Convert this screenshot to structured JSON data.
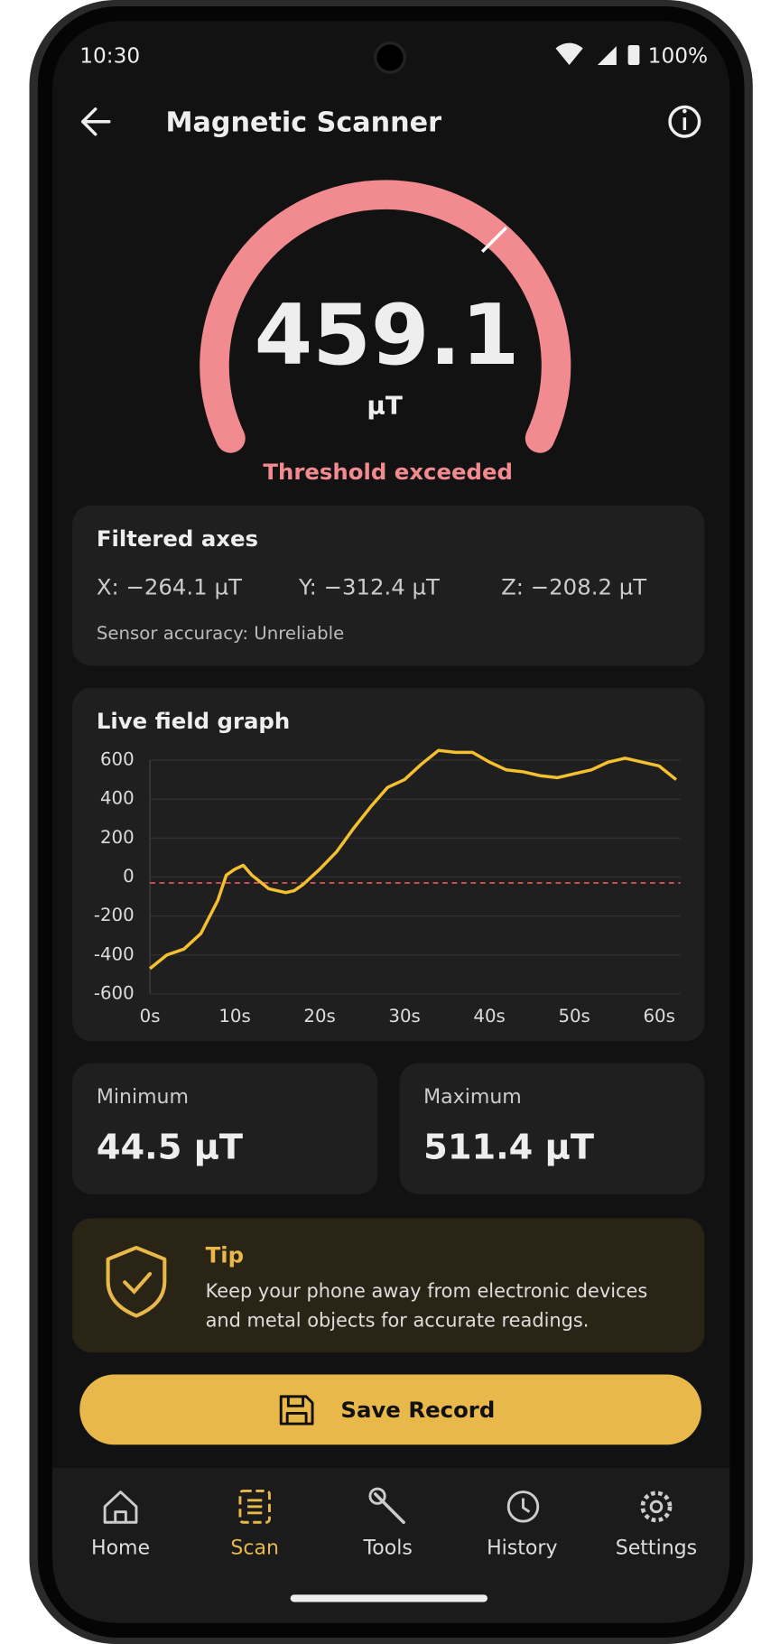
{
  "status_bar": {
    "time": "10:30",
    "battery": "100%"
  },
  "header": {
    "title": "Magnetic Scanner"
  },
  "gauge": {
    "value": "459.1",
    "unit": "µT",
    "status": "Threshold exceeded"
  },
  "axes_card": {
    "title": "Filtered axes",
    "x": "X: −264.1 µT",
    "y": "Y: −312.4 µT",
    "z": "Z: −208.2 µT",
    "accuracy": "Sensor accuracy: Unreliable"
  },
  "chart_data": {
    "type": "line",
    "title": "Live field graph",
    "x": [
      0,
      2,
      4,
      6,
      8,
      9,
      10,
      11,
      12,
      14,
      16,
      17,
      18,
      20,
      22,
      24,
      26,
      28,
      30,
      32,
      34,
      36,
      38,
      40,
      42,
      44,
      46,
      48,
      50,
      52,
      54,
      56,
      58,
      60,
      62
    ],
    "values": [
      -470,
      -400,
      -370,
      -290,
      -120,
      10,
      40,
      60,
      10,
      -60,
      -80,
      -70,
      -40,
      40,
      130,
      250,
      360,
      460,
      500,
      580,
      650,
      640,
      640,
      590,
      550,
      540,
      520,
      510,
      530,
      550,
      590,
      610,
      590,
      570,
      500
    ],
    "color": "#f5c030",
    "xlim": [
      0,
      62.5
    ],
    "xticks": [
      {
        "value": 0,
        "label": "0s"
      },
      {
        "value": 10,
        "label": "10s"
      },
      {
        "value": 20,
        "label": "20s"
      },
      {
        "value": 30,
        "label": "30s"
      },
      {
        "value": 40,
        "label": "40s"
      },
      {
        "value": 50,
        "label": "50s"
      },
      {
        "value": 60,
        "label": "60s"
      }
    ],
    "ylim": [
      -600,
      600
    ],
    "yticks": [
      -600,
      -400,
      -200,
      0,
      200,
      400,
      600
    ],
    "grid": true,
    "threshold_line": {
      "value": -30,
      "color": "#e05555"
    }
  },
  "stats": {
    "minimum": {
      "label": "Minimum",
      "value": "44.5 µT"
    },
    "maximum": {
      "label": "Maximum",
      "value": "511.4 µT"
    }
  },
  "tip": {
    "title": "Tip",
    "lines": [
      "Keep your phone away from electronic devices",
      "and metal objects for accurate readings."
    ]
  },
  "button": {
    "label": "Save Record"
  },
  "nav": [
    {
      "label": "Home"
    },
    {
      "label": "Scan"
    },
    {
      "label": "Tools"
    },
    {
      "label": "History"
    },
    {
      "label": "Settings"
    }
  ]
}
